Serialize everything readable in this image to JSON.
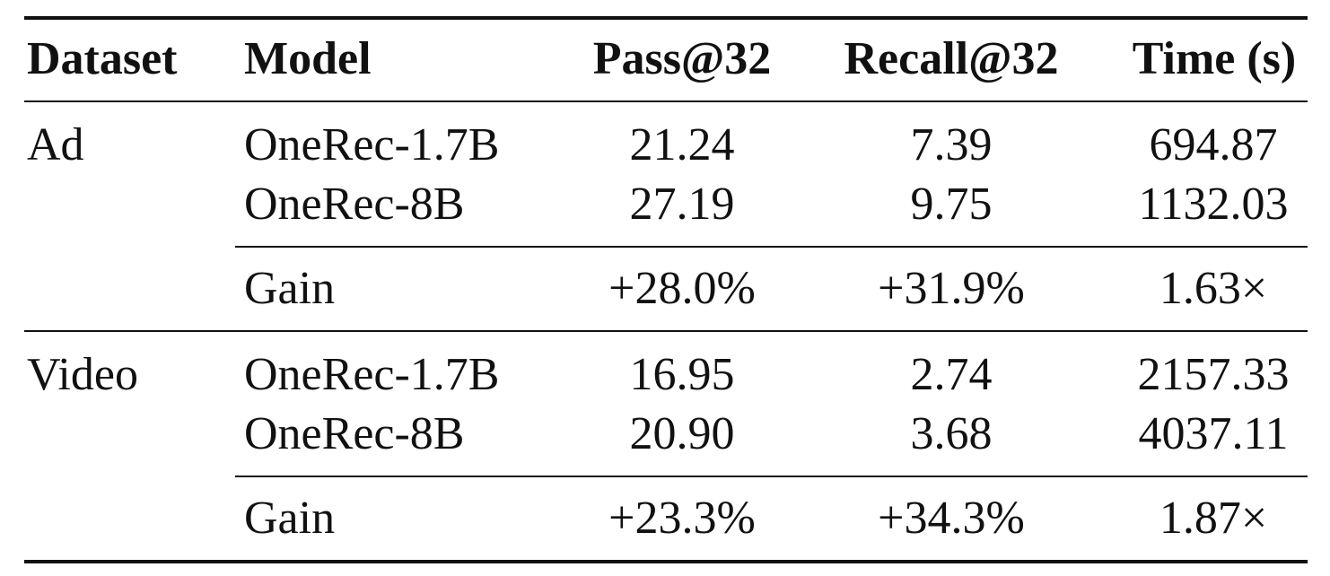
{
  "table": {
    "headers": {
      "dataset": "Dataset",
      "model": "Model",
      "pass": "Pass@32",
      "recall": "Recall@32",
      "time": "Time (s)"
    },
    "groups": [
      {
        "dataset": "Ad",
        "rows": [
          {
            "model": "OneRec-1.7B",
            "pass": "21.24",
            "recall": "7.39",
            "time": "694.87"
          },
          {
            "model": "OneRec-8B",
            "pass": "27.19",
            "recall": "9.75",
            "time": "1132.03"
          }
        ],
        "gain": {
          "label": "Gain",
          "pass": "+28.0%",
          "recall": "+31.9%",
          "time": "1.63×"
        }
      },
      {
        "dataset": "Video",
        "rows": [
          {
            "model": "OneRec-1.7B",
            "pass": "16.95",
            "recall": "2.74",
            "time": "2157.33"
          },
          {
            "model": "OneRec-8B",
            "pass": "20.90",
            "recall": "3.68",
            "time": "4037.11"
          }
        ],
        "gain": {
          "label": "Gain",
          "pass": "+23.3%",
          "recall": "+34.3%",
          "time": "1.87×"
        }
      }
    ]
  }
}
